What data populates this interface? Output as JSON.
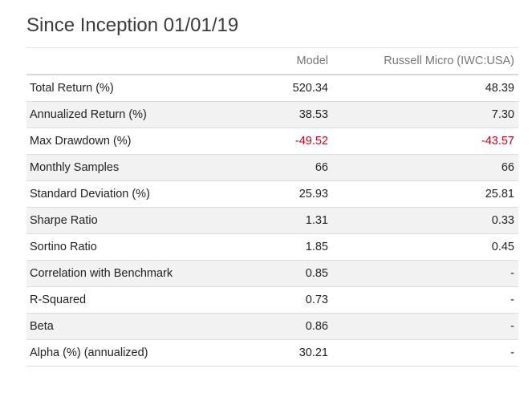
{
  "title": "Since Inception 01/01/19",
  "table": {
    "headers": {
      "metric": "",
      "model": "Model",
      "benchmark": "Russell Micro (IWC:USA)"
    },
    "rows": [
      {
        "label": "Total Return (%)",
        "model": "520.34",
        "benchmark": "48.39"
      },
      {
        "label": "Annualized Return (%)",
        "model": "38.53",
        "benchmark": "7.30"
      },
      {
        "label": "Max Drawdown (%)",
        "model": "-49.52",
        "benchmark": "-43.57"
      },
      {
        "label": "Monthly Samples",
        "model": "66",
        "benchmark": "66"
      },
      {
        "label": "Standard Deviation (%)",
        "model": "25.93",
        "benchmark": "25.81"
      },
      {
        "label": "Sharpe Ratio",
        "model": "1.31",
        "benchmark": "0.33"
      },
      {
        "label": "Sortino Ratio",
        "model": "1.85",
        "benchmark": "0.45"
      },
      {
        "label": "Correlation with Benchmark",
        "model": "0.85",
        "benchmark": "-"
      },
      {
        "label": "R-Squared",
        "model": "0.73",
        "benchmark": "-"
      },
      {
        "label": "Beta",
        "model": "0.86",
        "benchmark": "-"
      },
      {
        "label": "Alpha (%) (annualized)",
        "model": "30.21",
        "benchmark": "-"
      }
    ]
  },
  "colors": {
    "negative": "#d0021b",
    "header_text": "#777777",
    "stripe": "#f2f2f2"
  }
}
